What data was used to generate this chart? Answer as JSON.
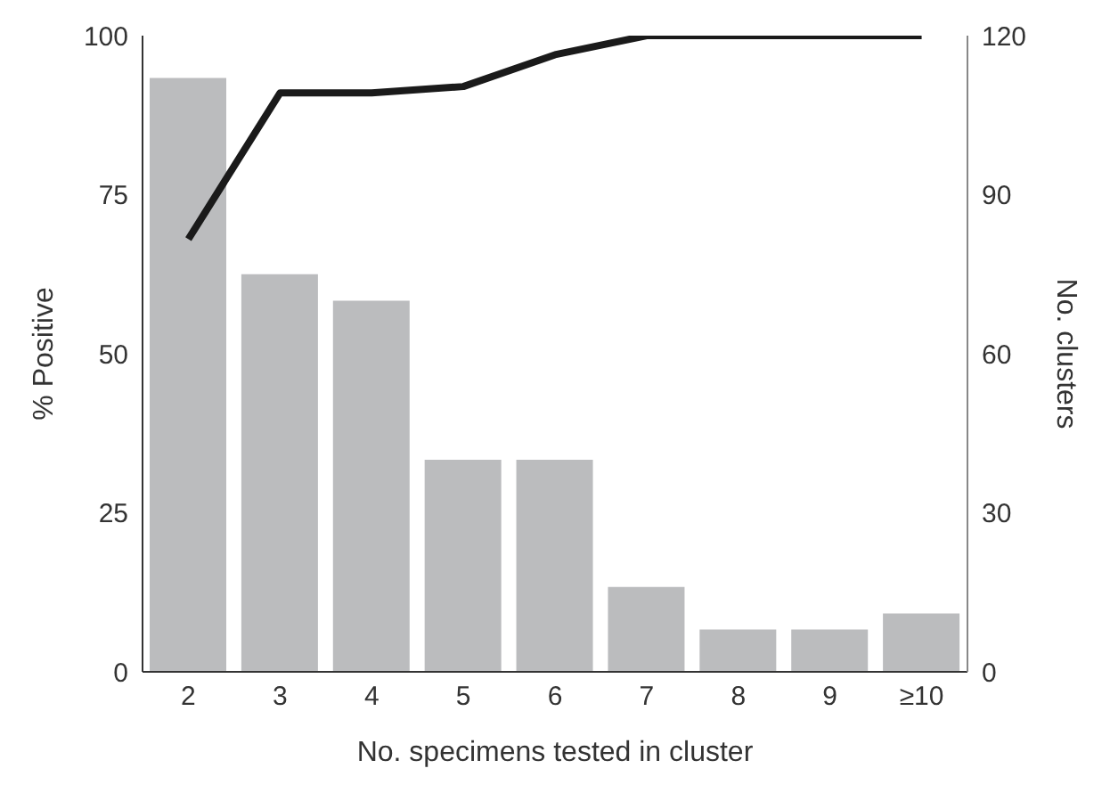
{
  "chart_data": {
    "type": "bar",
    "xlabel": "No. specimens tested in cluster",
    "ylabel": "% Positive",
    "y2label": "No. clusters",
    "categories": [
      "2",
      "3",
      "4",
      "5",
      "6",
      "7",
      "8",
      "9",
      "≥10"
    ],
    "series": [
      {
        "axis": "y2",
        "color": "#bbbcbe",
        "values": [
          112,
          75,
          70,
          40,
          40,
          16,
          8,
          8,
          11
        ]
      },
      {
        "type": "line",
        "axis": "y",
        "color": "#1a1a1a",
        "values": [
          68,
          91,
          91,
          92,
          97,
          100,
          100,
          100,
          100
        ]
      }
    ],
    "ylim": [
      0,
      100
    ],
    "yticks": [
      0,
      25,
      50,
      75,
      100
    ],
    "y2lim": [
      0,
      120
    ],
    "y2ticks": [
      0,
      30,
      60,
      90,
      120
    ],
    "grid": false,
    "legend": false,
    "marker": "none",
    "line_style": "solid"
  }
}
